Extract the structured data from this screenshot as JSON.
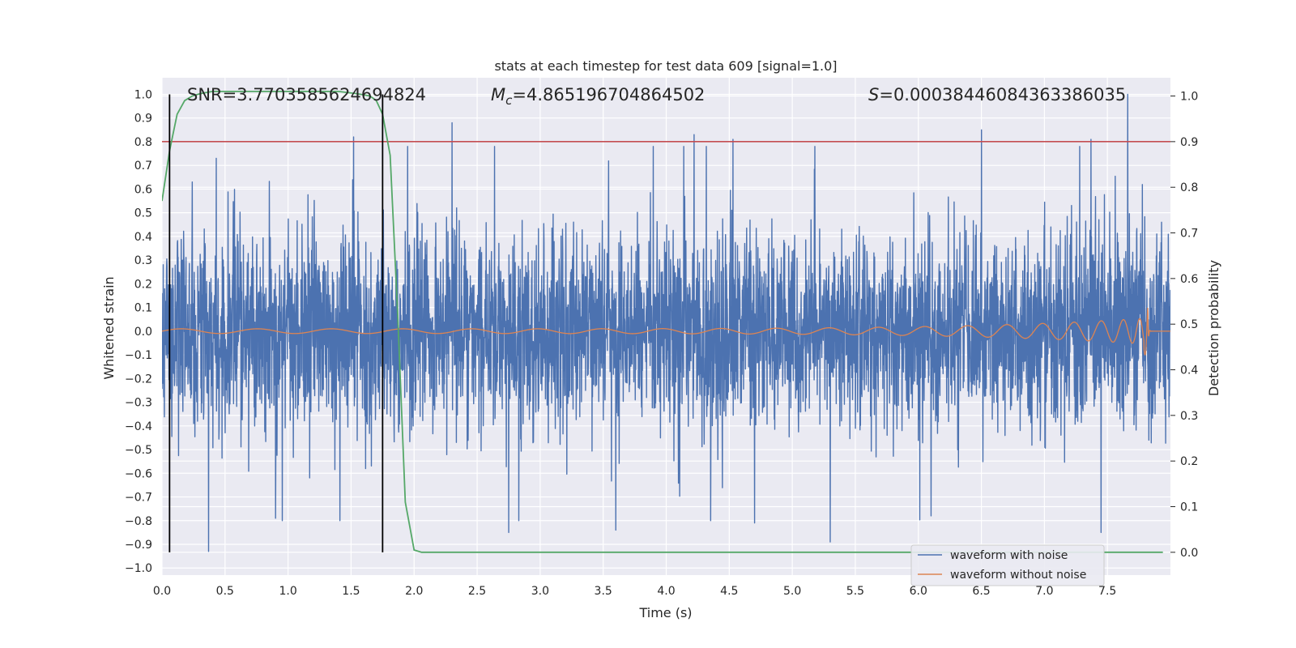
{
  "chart_data": {
    "type": "line",
    "title": "stats at each timestep for test data 609 [signal=1.0]",
    "xlabel": "Time (s)",
    "ylabel": "Whitened strain",
    "ylabel_right": "Detection probability",
    "xlim": [
      0.0,
      8.0
    ],
    "ylim": [
      -1.03,
      1.07
    ],
    "ylim_right": [
      -0.05,
      1.04
    ],
    "x_ticks": [
      0.0,
      0.5,
      1.0,
      1.5,
      2.0,
      2.5,
      3.0,
      3.5,
      4.0,
      4.5,
      5.0,
      5.5,
      6.0,
      6.5,
      7.0,
      7.5
    ],
    "x_tick_labels": [
      "0.0",
      "0.5",
      "1.0",
      "1.5",
      "2.0",
      "2.5",
      "3.0",
      "3.5",
      "4.0",
      "4.5",
      "5.0",
      "5.5",
      "6.0",
      "6.5",
      "7.0",
      "7.5"
    ],
    "y_ticks": [
      1.0,
      0.9,
      0.8,
      0.7,
      0.6,
      0.5,
      0.4,
      0.3,
      0.2,
      0.1,
      0.0,
      -0.1,
      -0.2,
      -0.3,
      -0.4,
      -0.5,
      -0.6,
      -0.7,
      -0.8,
      -0.9,
      -1.0
    ],
    "y_tick_labels": [
      "1.0",
      "0.9",
      "0.8",
      "0.7",
      "0.6",
      "0.5",
      "0.4",
      "0.3",
      "0.2",
      "0.1",
      "0.0",
      "−0.1",
      "−0.2",
      "−0.3",
      "−0.4",
      "−0.5",
      "−0.6",
      "−0.7",
      "−0.8",
      "−0.9",
      "−1.0"
    ],
    "y_right_ticks": [
      1.0,
      0.9,
      0.8,
      0.7,
      0.6,
      0.5,
      0.4,
      0.3,
      0.2,
      0.1,
      0.0
    ],
    "y_right_tick_labels": [
      "1.0",
      "0.9",
      "0.8",
      "0.7",
      "0.6",
      "0.5",
      "0.4",
      "0.3",
      "0.2",
      "0.1",
      "0.0"
    ],
    "annotations": {
      "snr": "SNR=3.7703585624694824",
      "mc_symbol": "M",
      "mc_sub": "c",
      "mc_value": "=4.865196704864502",
      "s_symbol": "S",
      "s_value": "=0.00038446084363386035"
    },
    "threshold": {
      "value": 0.9,
      "axis": "right",
      "color": "#c44e52"
    },
    "vertical_markers": [
      0.06,
      1.75
    ],
    "series": [
      {
        "name": "waveform with noise",
        "axis": "left",
        "color": "#4c72b0",
        "kind": "noise",
        "x_range": [
          0.0,
          8.0
        ],
        "peaks": [
          {
            "x": 0.24,
            "y": 0.63
          },
          {
            "x": 0.43,
            "y": 0.73
          },
          {
            "x": 1.52,
            "y": 0.82
          },
          {
            "x": 2.3,
            "y": 0.88
          },
          {
            "x": 4.22,
            "y": 0.83
          },
          {
            "x": 4.53,
            "y": 0.81
          },
          {
            "x": 6.5,
            "y": 0.85
          },
          {
            "x": 7.66,
            "y": 1.0
          },
          {
            "x": 7.37,
            "y": 0.81
          }
        ],
        "troughs": [
          {
            "x": 0.37,
            "y": -0.93
          },
          {
            "x": 0.9,
            "y": -0.79
          },
          {
            "x": 2.75,
            "y": -0.85
          },
          {
            "x": 3.6,
            "y": -0.84
          },
          {
            "x": 4.7,
            "y": -0.81
          },
          {
            "x": 5.3,
            "y": -0.89
          },
          {
            "x": 7.45,
            "y": -0.85
          },
          {
            "x": 6.1,
            "y": -0.78
          }
        ]
      },
      {
        "name": "waveform without noise",
        "axis": "left",
        "color": "#dd8452",
        "kind": "chirp",
        "x_range": [
          0.0,
          8.0
        ],
        "amplitude_start": 0.01,
        "amplitude_end": 0.1,
        "merger_time": 7.82
      },
      {
        "name": "detection probability",
        "axis": "right",
        "color": "#55a868",
        "x": [
          0.0,
          0.06,
          0.12,
          0.18,
          0.24,
          0.3,
          0.4,
          0.6,
          0.8,
          1.0,
          1.2,
          1.4,
          1.55,
          1.65,
          1.7,
          1.75,
          1.81,
          1.87,
          1.93,
          2.0,
          2.06,
          2.12,
          2.5,
          3.0,
          4.0,
          5.0,
          6.0,
          7.0,
          7.94
        ],
        "y": [
          0.77,
          0.88,
          0.96,
          0.99,
          1.0,
          1.005,
          1.01,
          1.01,
          1.01,
          1.01,
          1.01,
          1.01,
          1.005,
          1.0,
          0.99,
          0.96,
          0.87,
          0.52,
          0.11,
          0.005,
          0.0,
          0.0,
          0.0,
          0.0,
          0.0,
          0.0,
          0.0,
          0.0,
          0.0
        ]
      }
    ],
    "legend": {
      "position": "lower-right",
      "entries": [
        {
          "label": "waveform with noise",
          "color": "#4c72b0"
        },
        {
          "label": "waveform without noise",
          "color": "#dd8452"
        }
      ]
    }
  }
}
